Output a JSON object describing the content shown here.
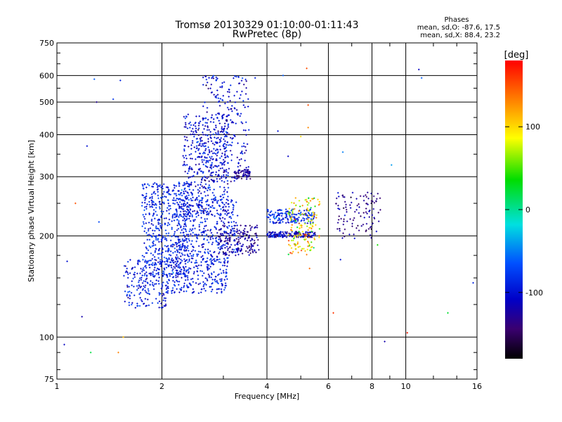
{
  "chart_data": {
    "type": "scatter",
    "title": "Tromsø 20130329 01:10:00-01:11:43",
    "subtitle": "RwPretec (8p)",
    "xlabel": "Frequency [MHz]",
    "ylabel": "Stationary phase Virtual Height [km]",
    "x_scale": "log",
    "y_scale": "log",
    "xlim": [
      1,
      16
    ],
    "ylim": [
      75,
      750
    ],
    "x_ticks": [
      1,
      2,
      4,
      6,
      8,
      10,
      16
    ],
    "x_tick_labels": [
      "1",
      "2",
      "4",
      "6",
      "8",
      "10",
      "16"
    ],
    "y_ticks": [
      75,
      100,
      200,
      300,
      400,
      500,
      600,
      750
    ],
    "y_tick_labels": [
      "75",
      "100",
      "200",
      "300",
      "400",
      "500",
      "600",
      "750"
    ],
    "grid": true,
    "phase_stats": {
      "heading": "Phases",
      "line_o": "mean, sd,O: -87.6, 17.5",
      "line_x": "mean, sd,X: 88.4, 23.2"
    },
    "colorbar": {
      "label": "[deg]",
      "range": [
        -180,
        180
      ],
      "ticks": [
        100,
        0,
        -100
      ],
      "tick_labels": [
        "100",
        "0",
        "-100"
      ],
      "colors": [
        "#ff0000",
        "#ff8800",
        "#ffff00",
        "#00dd00",
        "#00e0e0",
        "#0050ff",
        "#0000c8",
        "#3a0070",
        "#000000"
      ]
    },
    "clusters": [
      {
        "x_min": 1.55,
        "x_max": 2.1,
        "y_min": 122,
        "y_max": 170,
        "count": 190,
        "phase_mean": -95,
        "phase_sd": 15
      },
      {
        "x_min": 1.75,
        "x_max": 2.4,
        "y_min": 150,
        "y_max": 290,
        "count": 520,
        "phase_mean": -90,
        "phase_sd": 14
      },
      {
        "x_min": 2.05,
        "x_max": 3.1,
        "y_min": 135,
        "y_max": 175,
        "count": 260,
        "phase_mean": -95,
        "phase_sd": 14
      },
      {
        "x_min": 2.2,
        "x_max": 3.3,
        "y_min": 175,
        "y_max": 260,
        "count": 320,
        "phase_mean": -92,
        "phase_sd": 15
      },
      {
        "x_min": 2.3,
        "x_max": 3.1,
        "y_min": 230,
        "y_max": 460,
        "count": 420,
        "phase_mean": -100,
        "phase_sd": 16
      },
      {
        "x_min": 2.6,
        "x_max": 3.55,
        "y_min": 290,
        "y_max": 600,
        "count": 260,
        "phase_mean": -105,
        "phase_sd": 16
      },
      {
        "x_min": 3.2,
        "x_max": 3.6,
        "y_min": 295,
        "y_max": 315,
        "count": 60,
        "phase_mean": -130,
        "phase_sd": 12
      },
      {
        "x_min": 2.9,
        "x_max": 3.8,
        "y_min": 175,
        "y_max": 215,
        "count": 190,
        "phase_mean": -125,
        "phase_sd": 15
      },
      {
        "x_min": 4.0,
        "x_max": 5.5,
        "y_min": 198,
        "y_max": 206,
        "count": 160,
        "phase_mean": -110,
        "phase_sd": 18
      },
      {
        "x_min": 4.0,
        "x_max": 5.5,
        "y_min": 218,
        "y_max": 240,
        "count": 170,
        "phase_mean": -85,
        "phase_sd": 18
      },
      {
        "x_min": 4.6,
        "x_max": 5.7,
        "y_min": 175,
        "y_max": 260,
        "count": 150,
        "phase_mean": 95,
        "phase_sd": 35
      },
      {
        "x_min": 6.3,
        "x_max": 8.5,
        "y_min": 195,
        "y_max": 270,
        "count": 110,
        "phase_mean": -135,
        "phase_sd": 15
      }
    ],
    "scattered_points": [
      {
        "x": 1.05,
        "y": 95,
        "phase": -110
      },
      {
        "x": 1.07,
        "y": 168,
        "phase": -100
      },
      {
        "x": 1.13,
        "y": 250,
        "phase": 150
      },
      {
        "x": 1.18,
        "y": 115,
        "phase": -120
      },
      {
        "x": 1.22,
        "y": 370,
        "phase": -100
      },
      {
        "x": 1.25,
        "y": 90,
        "phase": 20
      },
      {
        "x": 1.28,
        "y": 585,
        "phase": -60
      },
      {
        "x": 1.3,
        "y": 500,
        "phase": -130
      },
      {
        "x": 1.32,
        "y": 220,
        "phase": -70
      },
      {
        "x": 1.45,
        "y": 510,
        "phase": -80
      },
      {
        "x": 1.5,
        "y": 90,
        "phase": 130
      },
      {
        "x": 1.52,
        "y": 580,
        "phase": -90
      },
      {
        "x": 1.55,
        "y": 100,
        "phase": 110
      },
      {
        "x": 3.7,
        "y": 590,
        "phase": -90
      },
      {
        "x": 4.3,
        "y": 410,
        "phase": -100
      },
      {
        "x": 4.45,
        "y": 600,
        "phase": -60
      },
      {
        "x": 5.2,
        "y": 630,
        "phase": 150
      },
      {
        "x": 5.25,
        "y": 420,
        "phase": 130
      },
      {
        "x": 5.25,
        "y": 490,
        "phase": 150
      },
      {
        "x": 4.6,
        "y": 345,
        "phase": -110
      },
      {
        "x": 5.0,
        "y": 395,
        "phase": 100
      },
      {
        "x": 6.6,
        "y": 355,
        "phase": -50
      },
      {
        "x": 8.7,
        "y": 97,
        "phase": -120
      },
      {
        "x": 9.1,
        "y": 325,
        "phase": -40
      },
      {
        "x": 10.1,
        "y": 103,
        "phase": 170
      },
      {
        "x": 10.9,
        "y": 625,
        "phase": -110
      },
      {
        "x": 11.1,
        "y": 590,
        "phase": -60
      },
      {
        "x": 13.2,
        "y": 118,
        "phase": 25
      },
      {
        "x": 15.6,
        "y": 145,
        "phase": -90
      },
      {
        "x": 6.2,
        "y": 118,
        "phase": 160
      },
      {
        "x": 8.3,
        "y": 188,
        "phase": 40
      },
      {
        "x": 5.3,
        "y": 160,
        "phase": 140
      },
      {
        "x": 6.5,
        "y": 170,
        "phase": -100
      }
    ]
  }
}
